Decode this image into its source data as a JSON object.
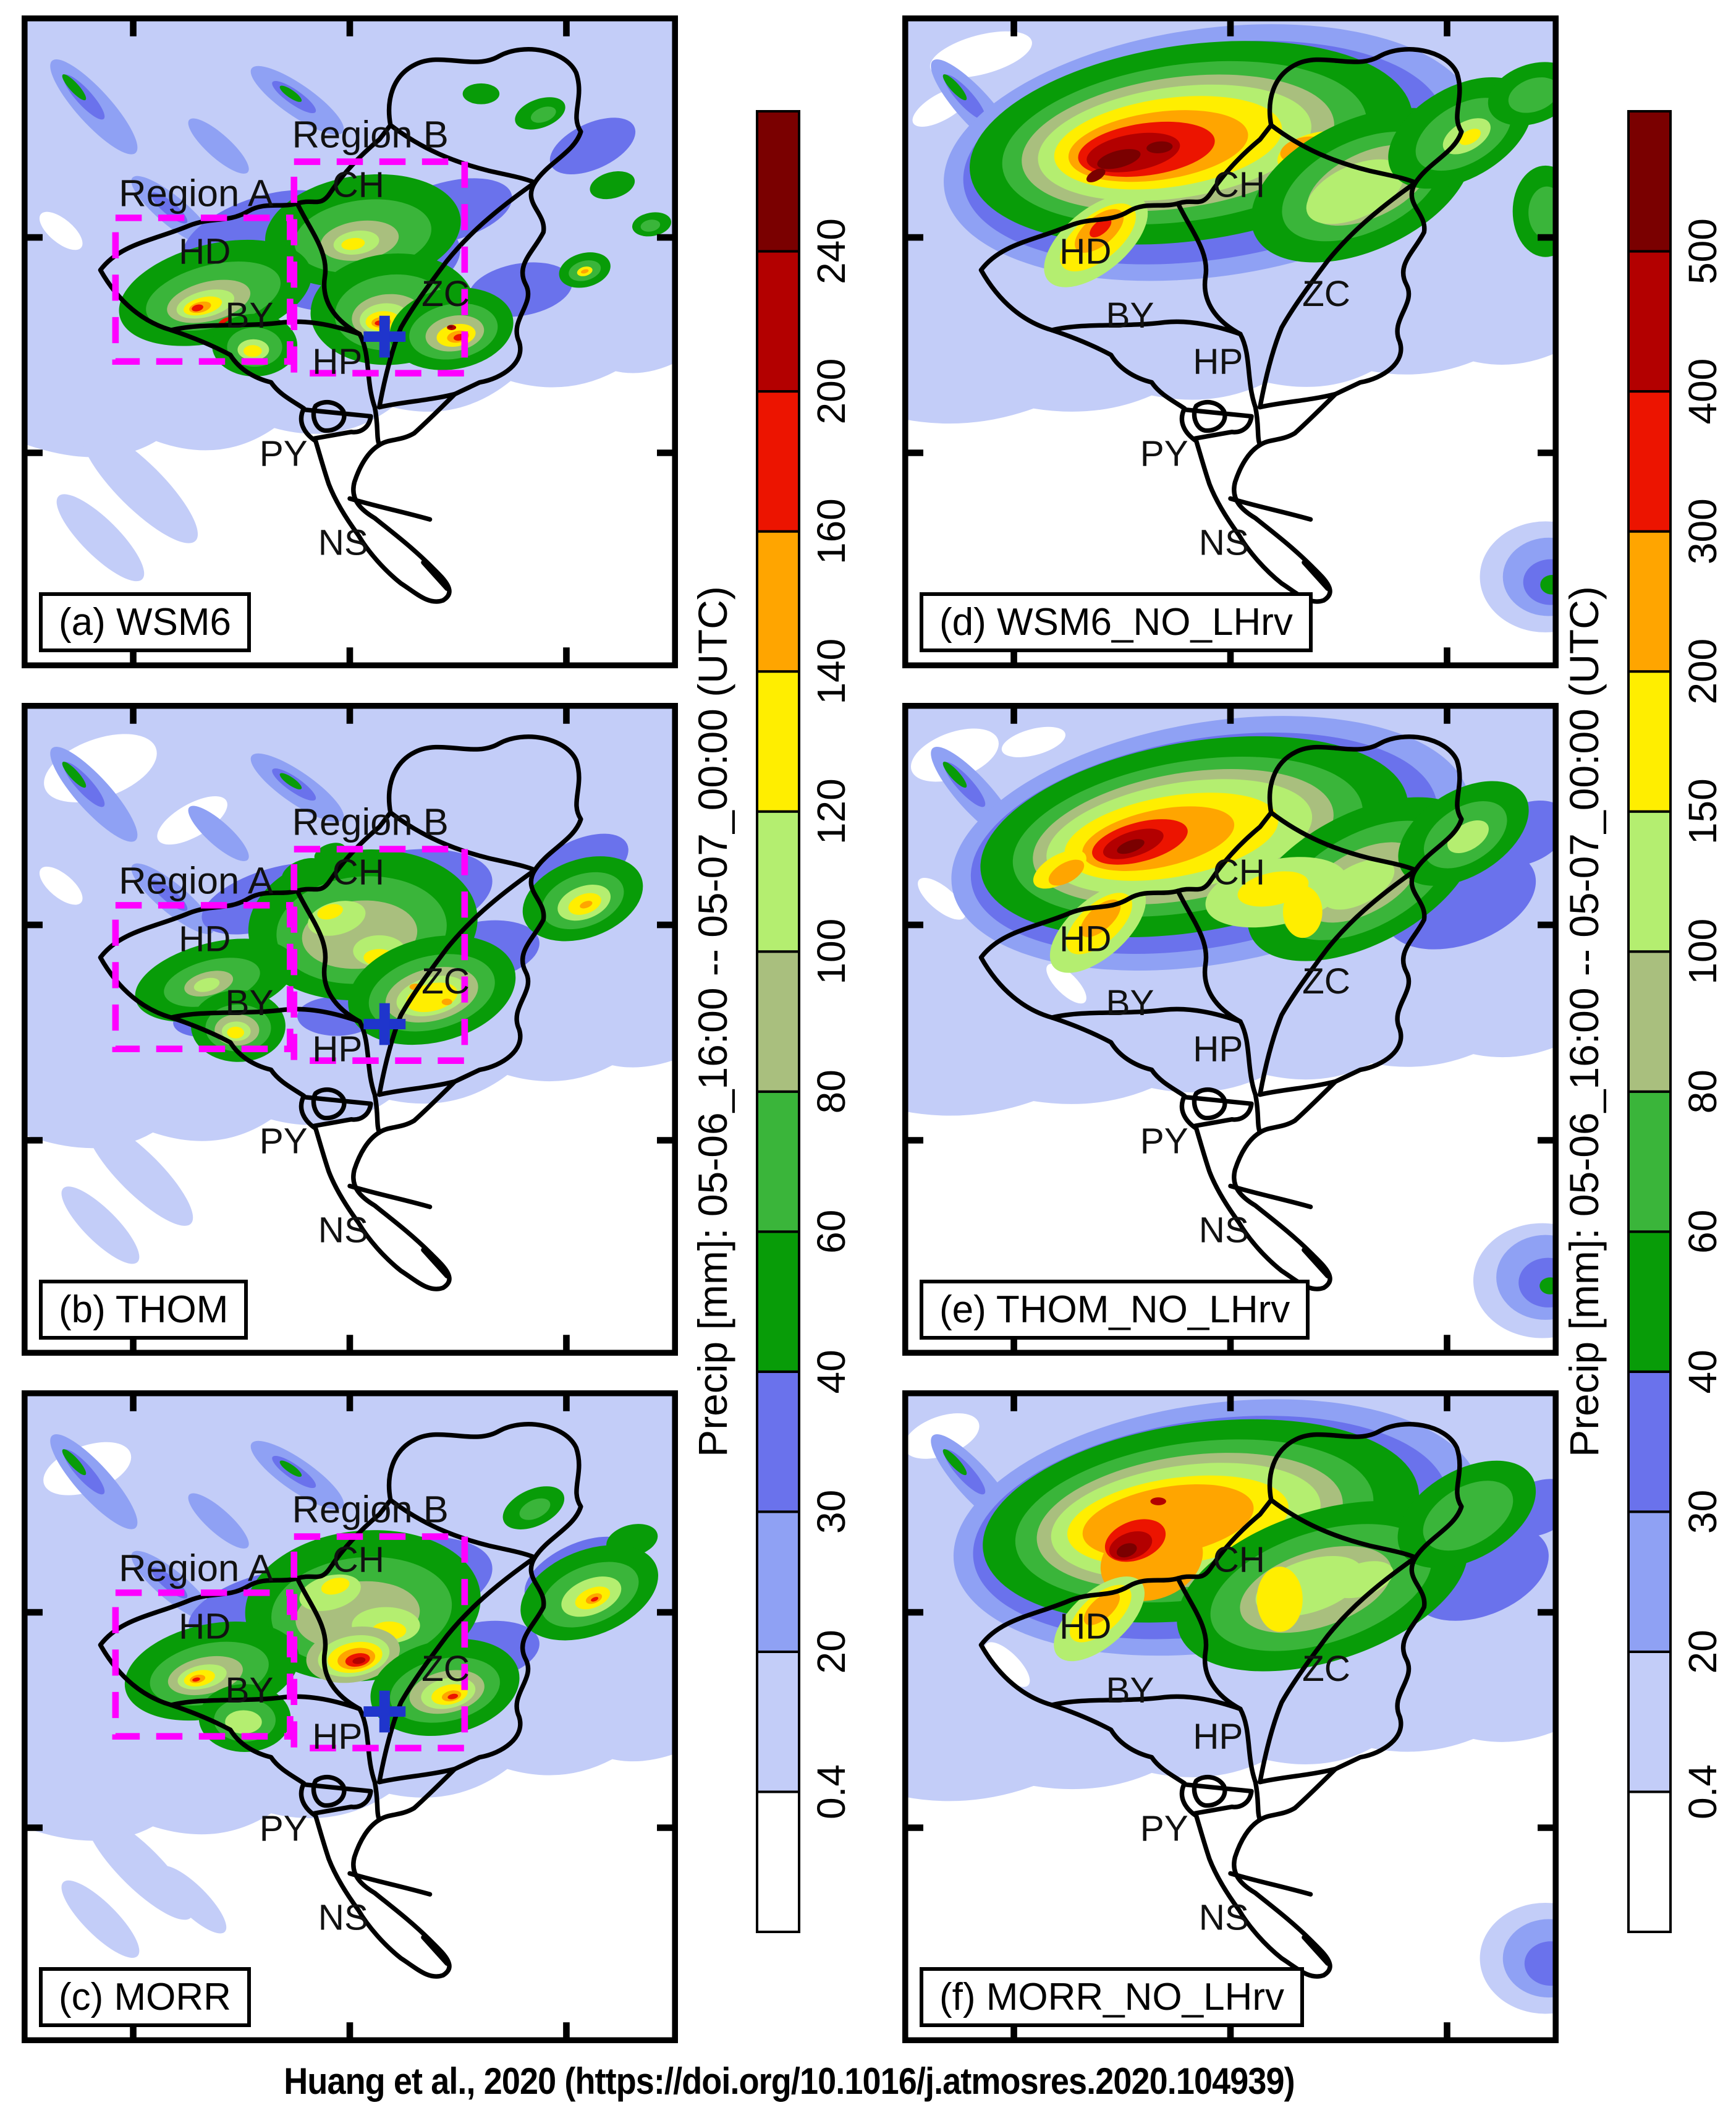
{
  "figure": {
    "caption": "Huang et al., 2020 (https://doi.org/10.1016/j.atmosres.2020.104939)"
  },
  "panels": [
    {
      "id": "a",
      "label": "(a) WSM6",
      "experiment": "WSM6",
      "has_region_boxes": true,
      "has_cross_marker": true
    },
    {
      "id": "b",
      "label": "(b) THOM",
      "experiment": "THOM",
      "has_region_boxes": true,
      "has_cross_marker": true
    },
    {
      "id": "c",
      "label": "(c) MORR",
      "experiment": "MORR",
      "has_region_boxes": true,
      "has_cross_marker": true
    },
    {
      "id": "d",
      "label": "(d) WSM6_NO_LHrv",
      "experiment": "WSM6_NO_LHrv",
      "has_region_boxes": false,
      "has_cross_marker": false
    },
    {
      "id": "e",
      "label": "(e) THOM_NO_LHrv",
      "experiment": "THOM_NO_LHrv",
      "has_region_boxes": false,
      "has_cross_marker": false
    },
    {
      "id": "f",
      "label": "(f) MORR_NO_LHrv",
      "experiment": "MORR_NO_LHrv",
      "has_region_boxes": false,
      "has_cross_marker": false
    }
  ],
  "map": {
    "district_labels": [
      "CH",
      "HD",
      "BY",
      "ZC",
      "HP",
      "PY",
      "NS"
    ],
    "region_a_label": "Region A",
    "region_b_label": "Region B",
    "region_box_color": "#ff00ff",
    "cross_marker_color": "#1f35cc"
  },
  "colorbars": {
    "left": {
      "title": "Precip [mm]: 05-06_16:00 -- 05-07_00:00 (UTC)",
      "ticks_bottom_to_top": [
        "0.4",
        "20",
        "30",
        "40",
        "60",
        "80",
        "100",
        "120",
        "140",
        "160",
        "200",
        "240"
      ]
    },
    "right": {
      "title": "Precip [mm]: 05-06_16:00 -- 05-07_00:00 (UTC)",
      "ticks_bottom_to_top": [
        "0.4",
        "20",
        "30",
        "40",
        "60",
        "80",
        "100",
        "150",
        "200",
        "300",
        "400",
        "500"
      ]
    },
    "colors_bottom_to_top": [
      "#ffffff",
      "#c3cdf8",
      "#8fa1f4",
      "#6a72ec",
      "#089c08",
      "#3ab53a",
      "#a9bf7e",
      "#b4ee70",
      "#ffee00",
      "#ffa500",
      "#ec1400",
      "#b30000",
      "#7a0000"
    ]
  },
  "chart_data": {
    "type": "heatmap",
    "variable": "Precip",
    "units": "mm",
    "accumulation_window": "05-06_16:00 -- 05-07_00:00 (UTC)",
    "left_column_levels_mm": [
      0.4,
      20,
      30,
      40,
      60,
      80,
      100,
      120,
      140,
      160,
      200,
      240
    ],
    "right_column_levels_mm": [
      0.4,
      20,
      30,
      40,
      60,
      80,
      100,
      150,
      200,
      300,
      400,
      500
    ],
    "palette_hex": [
      "#ffffff",
      "#c3cdf8",
      "#8fa1f4",
      "#6a72ec",
      "#089c08",
      "#3ab53a",
      "#a9bf7e",
      "#b4ee70",
      "#ffee00",
      "#ffa500",
      "#ec1400",
      "#b30000",
      "#7a0000"
    ],
    "panels": [
      {
        "id": "a",
        "experiment": "WSM6",
        "column": "left",
        "peak_level_mm": ">240",
        "summary": "Scattered convective cells over HD, BY, CH and ZC; strongest cores exceed 200 mm in HD and near the ZC/HP border beside the cross marker."
      },
      {
        "id": "b",
        "experiment": "THOM",
        "column": "left",
        "peak_level_mm": "140-160",
        "summary": "Clustered moderate rainfall over CH and ZC with 100-140 mm patches; weaker cells over HD, BY and a cell near the eastern edge."
      },
      {
        "id": "c",
        "experiment": "MORR",
        "column": "left",
        "peak_level_mm": ">200",
        "summary": "Broad rainfall over CH with a >200 mm core near the CH/HP border; secondary maxima in HD, ZC and near the eastern edge."
      },
      {
        "id": "d",
        "experiment": "WSM6_NO_LHrv",
        "column": "right",
        "peak_level_mm": ">500",
        "summary": "Single elongated intense band over the northwest (HD/CH) with a >500 mm core; 40-100 mm shield extending northeast."
      },
      {
        "id": "e",
        "experiment": "THOM_NO_LHrv",
        "column": "right",
        "peak_level_mm": "400-500",
        "summary": "Elongated band over the northwest with a 400-500 mm core; lighter 100-200 mm rain across CH."
      },
      {
        "id": "f",
        "experiment": "MORR_NO_LHrv",
        "column": "right",
        "peak_level_mm": ">500",
        "summary": "Northwest band with a >500 mm core over the HD/CH border and broad 40-150 mm rain over CH."
      }
    ],
    "region_boxes": {
      "panels": [
        "a",
        "b",
        "c"
      ],
      "labels": [
        "Region A",
        "Region B"
      ]
    },
    "cross_marker": {
      "panels": [
        "a",
        "b",
        "c"
      ],
      "location": "near the ZC/HP border"
    }
  }
}
